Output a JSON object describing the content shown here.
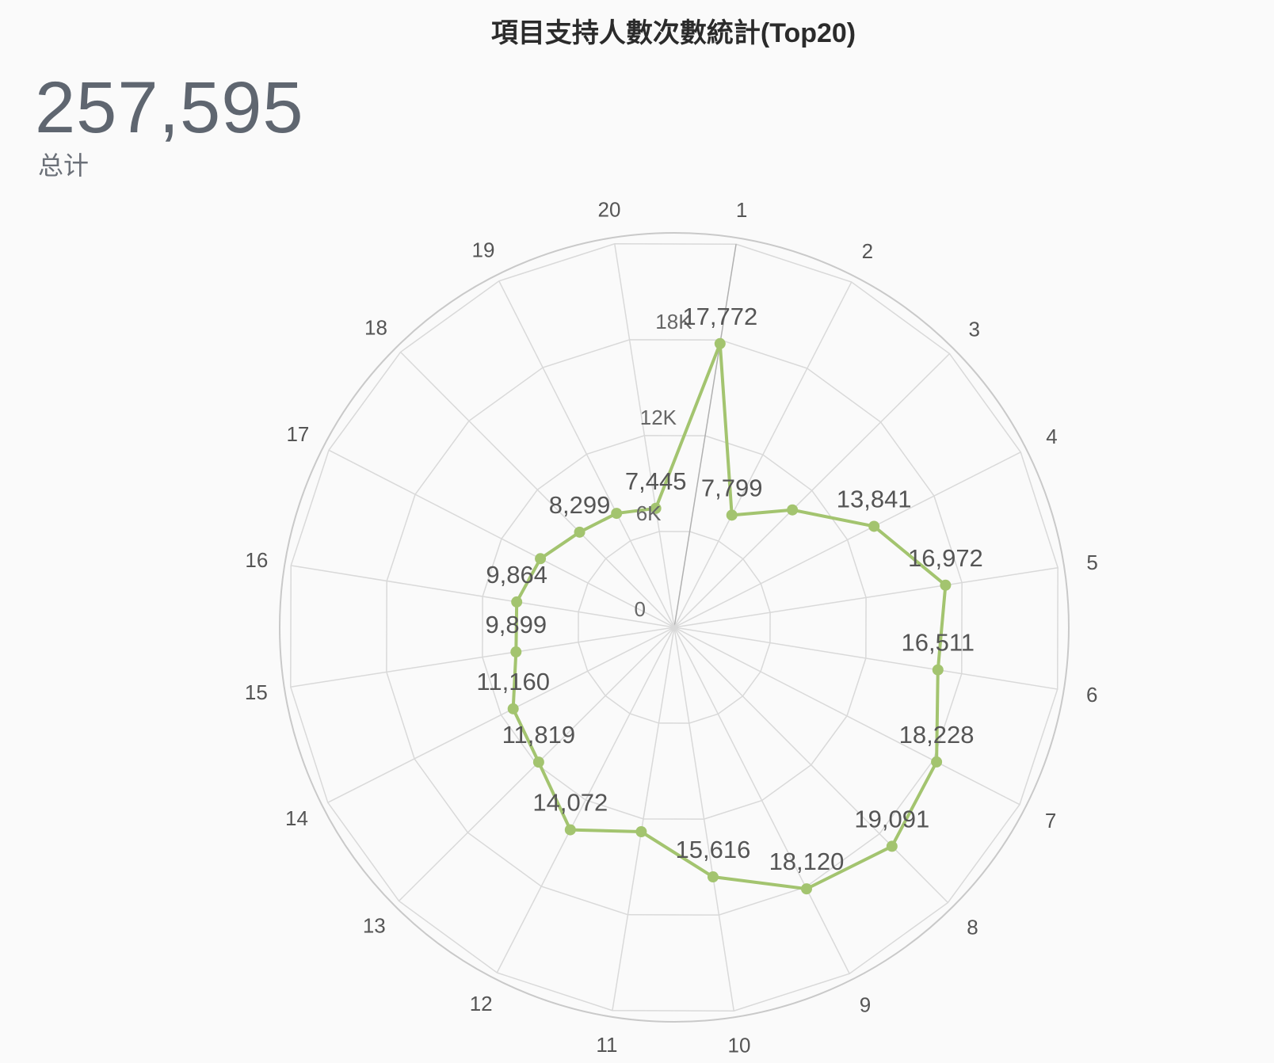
{
  "title": "項目支持人數次數統計(Top20)",
  "kpi": {
    "value": "257,595",
    "label": "总计"
  },
  "colors": {
    "series": "#a3c46f",
    "grid": "#d9d9d9",
    "outer_ring": "#c9c9c9",
    "first_axis": "#b0b0b0"
  },
  "chart_data": {
    "type": "radar",
    "title": "項目支持人數次數統計(Top20)",
    "categories": [
      "1",
      "2",
      "3",
      "4",
      "5",
      "6",
      "7",
      "8",
      "9",
      "10",
      "11",
      "12",
      "13",
      "14",
      "15",
      "16",
      "17",
      "18",
      "19",
      "20"
    ],
    "series": [
      {
        "name": "支持人數次數",
        "values": [
          17772,
          7799,
          10300,
          13841,
          16972,
          16511,
          18228,
          19091,
          18120,
          15616,
          12800,
          14072,
          11819,
          11160,
          9899,
          9864,
          9300,
          8299,
          7900,
          7445
        ],
        "labels": [
          "17,772",
          "7,799",
          "",
          "13,841",
          "16,972",
          "16,511",
          "18,228",
          "19,091",
          "18,120",
          "15,616",
          "",
          "14,072",
          "11,819",
          "11,160",
          "9,899",
          "9,864",
          "",
          "8,299",
          "",
          "7,445"
        ]
      }
    ],
    "radial_ticks": [
      0,
      6000,
      12000,
      18000
    ],
    "radial_tick_labels": [
      "0",
      "6K",
      "12K",
      "18K"
    ],
    "rlim": [
      0,
      24000
    ],
    "grid": true
  }
}
